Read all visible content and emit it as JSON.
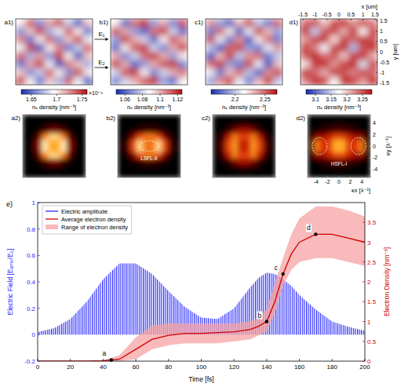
{
  "chart_data": [
    {
      "type": "heatmap",
      "title": "a1)",
      "xlim": [
        -1.6,
        1.6
      ],
      "ylim": [
        -1.6,
        1.6
      ],
      "tick_labels": false,
      "cells": [
        [
          1.7,
          1.74,
          1.66,
          1.72,
          1.75,
          1.68,
          1.64,
          1.71
        ],
        [
          1.66,
          1.71,
          1.75,
          1.67,
          1.69,
          1.74,
          1.7,
          1.65
        ],
        [
          1.73,
          1.65,
          1.7,
          1.74,
          1.66,
          1.71,
          1.75,
          1.69
        ],
        [
          1.69,
          1.75,
          1.64,
          1.7,
          1.73,
          1.65,
          1.68,
          1.74
        ],
        [
          1.74,
          1.67,
          1.72,
          1.66,
          1.75,
          1.7,
          1.64,
          1.71
        ],
        [
          1.65,
          1.72,
          1.75,
          1.69,
          1.64,
          1.73,
          1.71,
          1.67
        ],
        [
          1.71,
          1.66,
          1.68,
          1.74,
          1.7,
          1.66,
          1.75,
          1.7
        ],
        [
          1.75,
          1.7,
          1.65,
          1.71,
          1.67,
          1.74,
          1.69,
          1.64
        ]
      ],
      "colorbar": {
        "range": [
          1.63,
          1.76
        ],
        "ticks": [
          1.65,
          1.7,
          1.75
        ],
        "label": "nₑ density [nm⁻³]",
        "multiplier": "×10⁻³"
      }
    },
    {
      "type": "heatmap",
      "title": "b1)",
      "xlim": [
        -1.6,
        1.6
      ],
      "ylim": [
        -1.6,
        1.6
      ],
      "tick_labels": false,
      "cells": [
        [
          1.09,
          1.06,
          1.11,
          1.12,
          1.07,
          1.1,
          1.065,
          1.115
        ],
        [
          1.115,
          1.1,
          1.07,
          1.06,
          1.11,
          1.12,
          1.08,
          1.06
        ],
        [
          1.07,
          1.12,
          1.1,
          1.08,
          1.06,
          1.09,
          1.115,
          1.1
        ],
        [
          1.06,
          1.09,
          1.115,
          1.12,
          1.08,
          1.065,
          1.1,
          1.12
        ],
        [
          1.1,
          1.065,
          1.08,
          1.11,
          1.12,
          1.1,
          1.07,
          1.09
        ],
        [
          1.12,
          1.1,
          1.06,
          1.07,
          1.1,
          1.115,
          1.12,
          1.065
        ],
        [
          1.08,
          1.115,
          1.12,
          1.09,
          1.065,
          1.08,
          1.1,
          1.11
        ],
        [
          1.065,
          1.08,
          1.1,
          1.115,
          1.12,
          1.07,
          1.06,
          1.09
        ]
      ],
      "colorbar": {
        "range": [
          1.05,
          1.125
        ],
        "ticks": [
          1.06,
          1.08,
          1.1,
          1.12
        ],
        "label": "nₑ density [nm⁻³]"
      },
      "annotations": [
        {
          "text": "E₁"
        },
        {
          "text": "E₂"
        }
      ]
    },
    {
      "type": "heatmap",
      "title": "c1)",
      "xlim": [
        -1.6,
        1.6
      ],
      "ylim": [
        -1.6,
        1.6
      ],
      "tick_labels": false,
      "cells": [
        [
          2.24,
          2.19,
          2.17,
          2.23,
          2.26,
          2.2,
          2.18,
          2.25
        ],
        [
          2.18,
          2.25,
          2.22,
          2.17,
          2.21,
          2.26,
          2.23,
          2.19
        ],
        [
          2.26,
          2.21,
          2.18,
          2.24,
          2.17,
          2.22,
          2.25,
          2.18
        ],
        [
          2.2,
          2.17,
          2.25,
          2.26,
          2.19,
          2.18,
          2.21,
          2.24
        ],
        [
          2.17,
          2.23,
          2.26,
          2.2,
          2.24,
          2.25,
          2.18,
          2.2
        ],
        [
          2.25,
          2.26,
          2.19,
          2.18,
          2.26,
          2.21,
          2.17,
          2.23
        ],
        [
          2.21,
          2.18,
          2.23,
          2.25,
          2.2,
          2.17,
          2.24,
          2.26
        ],
        [
          2.19,
          2.24,
          2.26,
          2.21,
          2.18,
          2.23,
          2.26,
          2.2
        ]
      ],
      "colorbar": {
        "range": [
          2.16,
          2.27
        ],
        "ticks": [
          2.2,
          2.25
        ],
        "label": "nₑ density [nm⁻³]"
      }
    },
    {
      "type": "heatmap",
      "title": "d1)",
      "xlim": [
        -1.6,
        1.6
      ],
      "ylim": [
        -1.6,
        1.6
      ],
      "tick_labels": true,
      "xticks": [
        -1.5,
        -1,
        -0.5,
        0,
        0.5,
        1,
        1.5
      ],
      "yticks": [
        -1.5,
        -1,
        -0.5,
        0,
        0.5,
        1,
        1.5
      ],
      "x_label": "x [um]",
      "y_label": "y [um]",
      "cells": [
        [
          3.24,
          3.26,
          3.2,
          3.25,
          3.27,
          3.22,
          3.26,
          3.23
        ],
        [
          3.27,
          3.15,
          3.25,
          3.26,
          3.21,
          3.27,
          3.18,
          3.26
        ],
        [
          3.22,
          3.26,
          3.27,
          3.19,
          3.26,
          3.24,
          3.27,
          3.25
        ],
        [
          3.26,
          3.23,
          3.17,
          3.26,
          3.27,
          3.14,
          3.25,
          3.27
        ],
        [
          3.25,
          3.27,
          3.24,
          3.25,
          3.2,
          3.26,
          3.27,
          3.21
        ],
        [
          3.19,
          3.26,
          3.27,
          3.22,
          3.26,
          3.27,
          3.16,
          3.26
        ],
        [
          3.27,
          3.24,
          3.21,
          3.27,
          3.25,
          3.23,
          3.26,
          3.24
        ],
        [
          3.23,
          3.27,
          3.26,
          3.18,
          3.27,
          3.26,
          3.22,
          3.27
        ]
      ],
      "colorbar": {
        "range": [
          3.07,
          3.28
        ],
        "ticks": [
          3.1,
          3.15,
          3.2,
          3.25
        ],
        "label": "nₑ density [nm⁻³]"
      }
    },
    {
      "type": "heatmap",
      "title": "a2)",
      "xlim": [
        -5.5,
        5.5
      ],
      "ylim": [
        -5.5,
        5.5
      ],
      "zlim": [
        0,
        1
      ],
      "tick_labels": false,
      "cells": [
        [
          0,
          0,
          0,
          0,
          0,
          0,
          0,
          0,
          0,
          0
        ],
        [
          0,
          0,
          0,
          0.03,
          0.05,
          0.05,
          0.03,
          0,
          0,
          0
        ],
        [
          0,
          0,
          0.05,
          0.15,
          0.3,
          0.3,
          0.15,
          0.05,
          0,
          0
        ],
        [
          0,
          0.03,
          0.2,
          0.7,
          0.9,
          0.9,
          0.7,
          0.2,
          0.03,
          0
        ],
        [
          0,
          0.05,
          0.35,
          0.95,
          0.8,
          0.8,
          0.95,
          0.35,
          0.05,
          0
        ],
        [
          0,
          0.05,
          0.35,
          0.95,
          0.8,
          0.8,
          0.95,
          0.35,
          0.05,
          0
        ],
        [
          0,
          0.03,
          0.2,
          0.7,
          0.9,
          0.9,
          0.7,
          0.2,
          0.03,
          0
        ],
        [
          0,
          0,
          0.05,
          0.15,
          0.3,
          0.3,
          0.15,
          0.05,
          0,
          0
        ],
        [
          0,
          0,
          0,
          0.03,
          0.05,
          0.05,
          0.03,
          0,
          0,
          0
        ],
        [
          0,
          0,
          0,
          0,
          0,
          0,
          0,
          0,
          0,
          0
        ]
      ]
    },
    {
      "type": "heatmap",
      "title": "b2)",
      "xlim": [
        -5.5,
        5.5
      ],
      "ylim": [
        -5.5,
        5.5
      ],
      "zlim": [
        0,
        1
      ],
      "tick_labels": false,
      "cells": [
        [
          0,
          0,
          0,
          0,
          0,
          0,
          0,
          0,
          0,
          0
        ],
        [
          0,
          0,
          0,
          0.02,
          0.03,
          0.03,
          0.02,
          0,
          0,
          0
        ],
        [
          0,
          0,
          0.05,
          0.1,
          0.15,
          0.15,
          0.1,
          0.05,
          0,
          0
        ],
        [
          0,
          0.05,
          0.3,
          0.6,
          0.7,
          0.7,
          0.6,
          0.3,
          0.05,
          0
        ],
        [
          0.02,
          0.15,
          0.6,
          0.9,
          0.7,
          0.7,
          0.9,
          0.6,
          0.15,
          0.02
        ],
        [
          0.02,
          0.15,
          0.6,
          0.9,
          0.7,
          0.7,
          0.9,
          0.6,
          0.15,
          0.02
        ],
        [
          0,
          0.05,
          0.3,
          0.6,
          0.7,
          0.7,
          0.6,
          0.3,
          0.05,
          0
        ],
        [
          0,
          0,
          0.05,
          0.1,
          0.15,
          0.15,
          0.1,
          0.05,
          0,
          0
        ],
        [
          0,
          0,
          0,
          0.02,
          0.03,
          0.03,
          0.02,
          0,
          0,
          0
        ],
        [
          0,
          0,
          0,
          0,
          0,
          0,
          0,
          0,
          0,
          0
        ]
      ],
      "annotations": [
        {
          "text": "LSFL-II"
        }
      ]
    },
    {
      "type": "heatmap",
      "title": "c2)",
      "xlim": [
        -5.5,
        5.5
      ],
      "ylim": [
        -5.5,
        5.5
      ],
      "zlim": [
        0,
        1
      ],
      "tick_labels": false,
      "cells": [
        [
          0,
          0,
          0,
          0,
          0,
          0,
          0,
          0,
          0,
          0
        ],
        [
          0,
          0,
          0.03,
          0.05,
          0.08,
          0.08,
          0.05,
          0.03,
          0,
          0
        ],
        [
          0,
          0.03,
          0.1,
          0.3,
          0.4,
          0.4,
          0.3,
          0.1,
          0.03,
          0
        ],
        [
          0.02,
          0.1,
          0.45,
          0.7,
          0.6,
          0.6,
          0.7,
          0.45,
          0.1,
          0.02
        ],
        [
          0.03,
          0.2,
          0.6,
          0.75,
          0.5,
          0.5,
          0.75,
          0.6,
          0.2,
          0.03
        ],
        [
          0.03,
          0.2,
          0.6,
          0.75,
          0.5,
          0.5,
          0.75,
          0.6,
          0.2,
          0.03
        ],
        [
          0.02,
          0.1,
          0.45,
          0.7,
          0.6,
          0.6,
          0.7,
          0.45,
          0.1,
          0.02
        ],
        [
          0,
          0.03,
          0.1,
          0.3,
          0.4,
          0.4,
          0.3,
          0.1,
          0.03,
          0
        ],
        [
          0,
          0,
          0.03,
          0.05,
          0.08,
          0.08,
          0.05,
          0.03,
          0,
          0
        ],
        [
          0,
          0,
          0,
          0,
          0,
          0,
          0,
          0,
          0,
          0
        ]
      ]
    },
    {
      "type": "heatmap",
      "title": "d2)",
      "xlim": [
        -5.5,
        5.5
      ],
      "ylim": [
        -5.5,
        5.5
      ],
      "zlim": [
        0,
        1
      ],
      "tick_labels": true,
      "xticks": [
        -4,
        -2,
        0,
        2,
        4
      ],
      "yticks": [
        -4,
        -2,
        0,
        2,
        4
      ],
      "x_label": "κx [λ⁻¹]",
      "y_label": "κy [λ⁻¹]",
      "cells": [
        [
          0,
          0,
          0,
          0,
          0,
          0,
          0,
          0,
          0,
          0
        ],
        [
          0,
          0,
          0.02,
          0.03,
          0.05,
          0.05,
          0.03,
          0.02,
          0,
          0
        ],
        [
          0,
          0.05,
          0.1,
          0.15,
          0.2,
          0.2,
          0.15,
          0.1,
          0.05,
          0
        ],
        [
          0.05,
          0.35,
          0.4,
          0.5,
          0.6,
          0.6,
          0.5,
          0.4,
          0.35,
          0.05
        ],
        [
          0.1,
          0.7,
          0.55,
          0.6,
          0.8,
          0.8,
          0.6,
          0.55,
          0.7,
          0.1
        ],
        [
          0.1,
          0.7,
          0.55,
          0.6,
          0.8,
          0.8,
          0.6,
          0.55,
          0.7,
          0.1
        ],
        [
          0.05,
          0.35,
          0.4,
          0.5,
          0.6,
          0.6,
          0.5,
          0.4,
          0.35,
          0.05
        ],
        [
          0,
          0.05,
          0.1,
          0.15,
          0.2,
          0.2,
          0.15,
          0.1,
          0.05,
          0
        ],
        [
          0,
          0,
          0.02,
          0.03,
          0.05,
          0.05,
          0.03,
          0.02,
          0,
          0
        ],
        [
          0,
          0,
          0,
          0,
          0,
          0,
          0,
          0,
          0,
          0
        ]
      ],
      "annotations": [
        {
          "text": "HSFL-I"
        }
      ]
    },
    {
      "type": "line",
      "title": "e)",
      "x_label": "Time [fs]",
      "y_label": "Electric Field [Eₐₘₚ/E₀]",
      "y2_label": "Electron Density [nm⁻³]",
      "xlim": [
        0,
        200
      ],
      "xticks": [
        0,
        20,
        40,
        60,
        80,
        100,
        120,
        140,
        160,
        180,
        200
      ],
      "ylim": [
        -0.2,
        1
      ],
      "yticks": [
        -0.2,
        0,
        0.2,
        0.4,
        0.6,
        0.8,
        1
      ],
      "y2lim": [
        0,
        4
      ],
      "y2ticks": [
        0,
        0.5,
        1,
        1.5,
        2,
        2.5,
        3,
        3.5
      ],
      "legend": "upper left",
      "x": [
        0,
        10,
        20,
        30,
        40,
        50,
        60,
        70,
        80,
        90,
        100,
        110,
        120,
        130,
        135,
        140,
        145,
        150,
        155,
        160,
        170,
        180,
        190,
        200
      ],
      "series": [
        {
          "name": "Electric amplitude",
          "type": "area",
          "line_style": "oscillation",
          "color": "#2a2aff",
          "values": [
            0.02,
            0.05,
            0.12,
            0.25,
            0.42,
            0.54,
            0.54,
            0.46,
            0.33,
            0.21,
            0.13,
            0.12,
            0.2,
            0.36,
            0.43,
            0.47,
            0.46,
            0.42,
            0.37,
            0.3,
            0.19,
            0.1,
            0.06,
            0.03
          ],
          "lower": [
            0,
            0,
            0,
            0,
            0,
            0,
            0,
            0,
            0,
            0,
            0,
            0,
            0,
            0,
            0,
            0,
            0,
            0,
            0,
            0,
            0,
            0,
            0,
            0
          ]
        },
        {
          "name": "Average electron density",
          "type": "line",
          "axis": "y2",
          "color": "#d00000",
          "values": [
            0,
            0,
            0,
            0,
            0.01,
            0.05,
            0.3,
            0.55,
            0.65,
            0.7,
            0.7,
            0.72,
            0.74,
            0.8,
            0.88,
            1.0,
            1.5,
            2.2,
            2.7,
            3.0,
            3.2,
            3.2,
            3.1,
            3.0
          ]
        },
        {
          "name": "Range of electron density",
          "type": "area",
          "axis": "y2",
          "color": "#f5a3a3",
          "values": [
            0,
            0,
            0,
            0,
            0.02,
            0.15,
            0.6,
            0.9,
            0.95,
            0.95,
            0.95,
            0.95,
            0.95,
            1.0,
            1.1,
            1.3,
            2.0,
            2.6,
            3.2,
            3.6,
            3.9,
            3.9,
            3.8,
            3.65
          ],
          "lower": [
            0,
            0,
            0,
            0,
            0,
            0,
            0.05,
            0.3,
            0.4,
            0.45,
            0.45,
            0.45,
            0.5,
            0.55,
            0.65,
            0.75,
            1.2,
            1.9,
            2.3,
            2.5,
            2.6,
            2.6,
            2.5,
            2.4
          ]
        }
      ],
      "annotations": [
        {
          "text": "a",
          "x": 45,
          "y": 0.03,
          "axis": "y2"
        },
        {
          "text": "b",
          "x": 140,
          "y": 1.0,
          "axis": "y2"
        },
        {
          "text": "c",
          "x": 150,
          "y": 2.2,
          "axis": "y2"
        },
        {
          "text": "d",
          "x": 170,
          "y": 3.2,
          "axis": "y2"
        }
      ]
    }
  ]
}
